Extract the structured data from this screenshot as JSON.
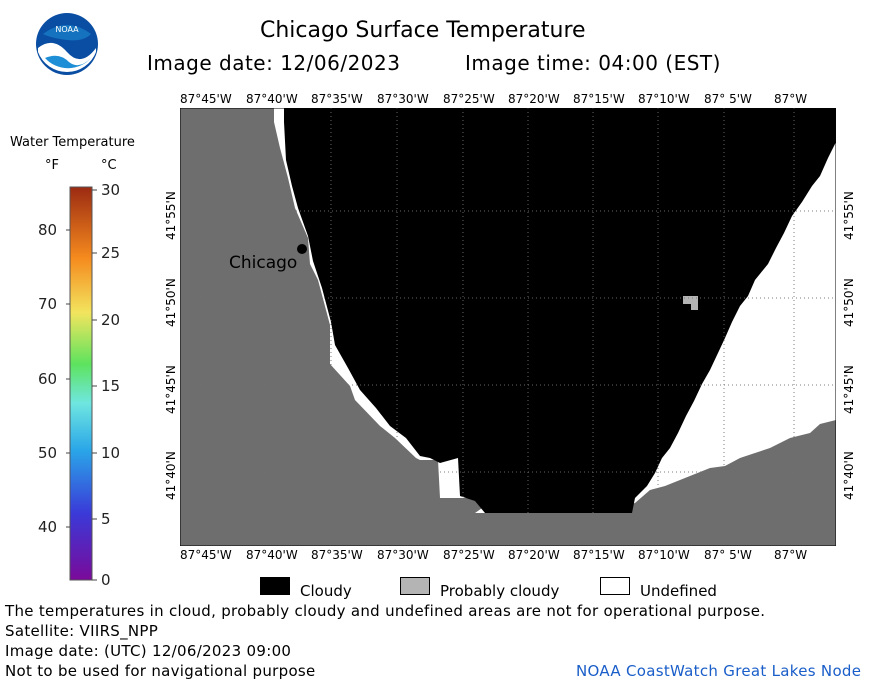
{
  "header": {
    "title": "Chicago Surface Temperature",
    "image_date": "Image date: 12/06/2023",
    "image_time": "Image time: 04:00 (EST)",
    "logo_text": "NOAA"
  },
  "colorbar": {
    "title": "Water Temperature",
    "unit_f": "°F",
    "unit_c": "°C",
    "f_ticks": [
      "80",
      "70",
      "60",
      "50",
      "40"
    ],
    "c_ticks": [
      "30",
      "25",
      "20",
      "15",
      "10",
      "5",
      "0"
    ]
  },
  "map": {
    "lon_labels": [
      "87°45'W",
      "87°40'W",
      "87°35'W",
      "87°30'W",
      "87°25'W",
      "87°20'W",
      "87°15'W",
      "87°10'W",
      "87° 5'W",
      "87°W"
    ],
    "lat_labels": [
      "41°55'N",
      "41°50'N",
      "41°45'N",
      "41°40'N"
    ],
    "city_label": "Chicago",
    "colors": {
      "land": "#6e6e6e",
      "cloudy": "#000000",
      "probably_cloudy": "#b4b4b4",
      "undefined": "#ffffff"
    }
  },
  "legend": {
    "cloudy": "Cloudy",
    "probably_cloudy": "Probably cloudy",
    "undefined": "Undefined"
  },
  "footer": {
    "disclaimer": "The temperatures in cloud, probably cloudy and undefined areas are not for operational purpose.",
    "satellite": "Satellite: VIIRS_NPP",
    "utc_date": "Image date: (UTC) 12/06/2023  09:00",
    "nav_warning": "Not to be used for navigational purpose",
    "node": "NOAA CoastWatch Great Lakes Node"
  }
}
